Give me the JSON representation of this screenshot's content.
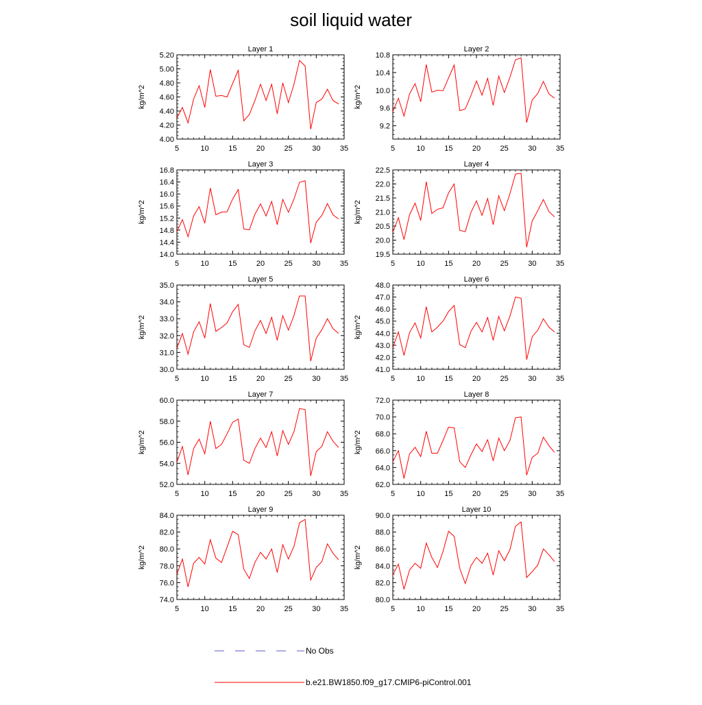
{
  "figure": {
    "title": "soil liquid water"
  },
  "legend": {
    "entries": [
      {
        "label": "No Obs",
        "color": "#5a5ac8",
        "dash": "dashed"
      },
      {
        "label": "b.e21.BW1850.f09_g17.CMIP6-piControl.001",
        "color": "#ff0000",
        "dash": "solid"
      }
    ]
  },
  "chart_data": [
    {
      "type": "line",
      "title": "Layer 1",
      "ylabel": "kg/m^2",
      "xlim": [
        5,
        35
      ],
      "xticks": [
        5,
        10,
        15,
        20,
        25,
        30,
        35
      ],
      "ylim": [
        4.0,
        5.2
      ],
      "yticks": [
        4.0,
        4.2,
        4.4,
        4.6,
        4.8,
        5.0,
        5.2
      ],
      "ydecimals": 2,
      "series": [
        {
          "name": "b.e21.BW1850.f09_g17.CMIP6-piControl.001",
          "color": "#ff0000",
          "x": [
            5,
            6,
            7,
            8,
            9,
            10,
            11,
            12,
            13,
            14,
            15,
            16,
            17,
            18,
            19,
            20,
            21,
            22,
            23,
            24,
            25,
            26,
            27,
            28,
            29,
            30,
            31,
            32,
            33,
            34
          ],
          "y": [
            4.3,
            4.45,
            4.23,
            4.57,
            4.76,
            4.45,
            4.99,
            4.61,
            4.62,
            4.6,
            4.79,
            4.98,
            4.26,
            4.35,
            4.55,
            4.78,
            4.55,
            4.78,
            4.36,
            4.8,
            4.52,
            4.78,
            5.12,
            5.04,
            4.14,
            4.52,
            4.57,
            4.71,
            4.55,
            4.5
          ]
        }
      ]
    },
    {
      "type": "line",
      "title": "Layer 2",
      "ylabel": "kg/m^2",
      "xlim": [
        5,
        35
      ],
      "xticks": [
        5,
        10,
        15,
        20,
        25,
        30,
        35
      ],
      "ylim": [
        8.9,
        10.8
      ],
      "yticks": [
        9.2,
        9.6,
        10.0,
        10.4,
        10.8
      ],
      "ydecimals": 1,
      "series": [
        {
          "name": "b.e21.BW1850.f09_g17.CMIP6-piControl.001",
          "color": "#ff0000",
          "x": [
            5,
            6,
            7,
            8,
            9,
            10,
            11,
            12,
            13,
            14,
            15,
            16,
            17,
            18,
            19,
            20,
            21,
            22,
            23,
            24,
            25,
            26,
            27,
            28,
            29,
            30,
            31,
            32,
            33,
            34
          ],
          "y": [
            9.52,
            9.82,
            9.42,
            9.92,
            10.15,
            9.74,
            10.58,
            9.96,
            10.0,
            9.99,
            10.28,
            10.57,
            9.54,
            9.58,
            9.88,
            10.21,
            9.89,
            10.27,
            9.66,
            10.32,
            9.95,
            10.29,
            10.69,
            10.73,
            9.27,
            9.78,
            9.93,
            10.2,
            9.92,
            9.82
          ]
        }
      ]
    },
    {
      "type": "line",
      "title": "Layer 3",
      "ylabel": "kg/m^2",
      "xlim": [
        5,
        35
      ],
      "xticks": [
        5,
        10,
        15,
        20,
        25,
        30,
        35
      ],
      "ylim": [
        14.0,
        16.8
      ],
      "yticks": [
        14.0,
        14.4,
        14.8,
        15.2,
        15.6,
        16.0,
        16.4,
        16.8
      ],
      "ydecimals": 1,
      "series": [
        {
          "name": "b.e21.BW1850.f09_g17.CMIP6-piControl.001",
          "color": "#ff0000",
          "x": [
            5,
            6,
            7,
            8,
            9,
            10,
            11,
            12,
            13,
            14,
            15,
            16,
            17,
            18,
            19,
            20,
            21,
            22,
            23,
            24,
            25,
            26,
            27,
            28,
            29,
            30,
            31,
            32,
            33,
            34
          ],
          "y": [
            14.75,
            15.15,
            14.58,
            15.27,
            15.58,
            15.03,
            16.2,
            15.31,
            15.4,
            15.41,
            15.83,
            16.15,
            14.84,
            14.81,
            15.33,
            15.67,
            15.27,
            15.75,
            14.98,
            15.82,
            15.39,
            15.83,
            16.39,
            16.44,
            14.37,
            15.06,
            15.29,
            15.68,
            15.31,
            15.17
          ]
        }
      ]
    },
    {
      "type": "line",
      "title": "Layer 4",
      "ylabel": "kg/m^2",
      "xlim": [
        5,
        35
      ],
      "xticks": [
        5,
        10,
        15,
        20,
        25,
        30,
        35
      ],
      "ylim": [
        19.5,
        22.5
      ],
      "yticks": [
        19.5,
        20.0,
        20.5,
        21.0,
        21.5,
        22.0,
        22.5
      ],
      "ydecimals": 1,
      "series": [
        {
          "name": "b.e21.BW1850.f09_g17.CMIP6-piControl.001",
          "color": "#ff0000",
          "x": [
            5,
            6,
            7,
            8,
            9,
            10,
            11,
            12,
            13,
            14,
            15,
            16,
            17,
            18,
            19,
            20,
            21,
            22,
            23,
            24,
            25,
            26,
            27,
            28,
            29,
            30,
            31,
            32,
            33,
            34
          ],
          "y": [
            20.28,
            20.8,
            20.02,
            20.9,
            21.32,
            20.7,
            22.08,
            20.95,
            21.1,
            21.15,
            21.68,
            22.0,
            20.35,
            20.3,
            20.98,
            21.4,
            20.88,
            21.48,
            20.55,
            21.58,
            21.05,
            21.65,
            22.35,
            22.38,
            19.75,
            20.68,
            21.05,
            21.45,
            21.02,
            20.83
          ]
        }
      ]
    },
    {
      "type": "line",
      "title": "Layer 5",
      "ylabel": "kg/m^2",
      "xlim": [
        5,
        35
      ],
      "xticks": [
        5,
        10,
        15,
        20,
        25,
        30,
        35
      ],
      "ylim": [
        30.0,
        35.0
      ],
      "yticks": [
        30.0,
        31.0,
        32.0,
        33.0,
        34.0,
        35.0
      ],
      "ydecimals": 1,
      "series": [
        {
          "name": "b.e21.BW1850.f09_g17.CMIP6-piControl.001",
          "color": "#ff0000",
          "x": [
            5,
            6,
            7,
            8,
            9,
            10,
            11,
            12,
            13,
            14,
            15,
            16,
            17,
            18,
            19,
            20,
            21,
            22,
            23,
            24,
            25,
            26,
            27,
            28,
            29,
            30,
            31,
            32,
            33,
            34
          ],
          "y": [
            31.25,
            32.12,
            30.9,
            32.22,
            32.82,
            31.85,
            33.9,
            32.25,
            32.48,
            32.75,
            33.42,
            33.85,
            31.45,
            31.3,
            32.28,
            32.9,
            32.12,
            33.08,
            31.72,
            33.18,
            32.32,
            33.2,
            34.35,
            34.35,
            30.48,
            31.85,
            32.35,
            33.0,
            32.42,
            32.12
          ]
        }
      ]
    },
    {
      "type": "line",
      "title": "Layer 6",
      "ylabel": "kg/m^2",
      "xlim": [
        5,
        35
      ],
      "xticks": [
        5,
        10,
        15,
        20,
        25,
        30,
        35
      ],
      "ylim": [
        41.0,
        48.0
      ],
      "yticks": [
        41.0,
        42.0,
        43.0,
        44.0,
        45.0,
        46.0,
        47.0,
        48.0
      ],
      "ydecimals": 1,
      "series": [
        {
          "name": "b.e21.BW1850.f09_g17.CMIP6-piControl.001",
          "color": "#ff0000",
          "x": [
            5,
            6,
            7,
            8,
            9,
            10,
            11,
            12,
            13,
            14,
            15,
            16,
            17,
            18,
            19,
            20,
            21,
            22,
            23,
            24,
            25,
            26,
            27,
            28,
            29,
            30,
            31,
            32,
            33,
            34
          ],
          "y": [
            42.8,
            44.1,
            42.15,
            44.05,
            44.85,
            43.6,
            46.2,
            44.1,
            44.5,
            45.0,
            45.8,
            46.3,
            43.05,
            42.8,
            44.15,
            44.9,
            44.1,
            45.3,
            43.4,
            45.4,
            44.2,
            45.4,
            47.0,
            46.9,
            41.8,
            43.7,
            44.25,
            45.2,
            44.5,
            44.1
          ]
        }
      ]
    },
    {
      "type": "line",
      "title": "Layer 7",
      "ylabel": "kg/m^2",
      "xlim": [
        5,
        35
      ],
      "xticks": [
        5,
        10,
        15,
        20,
        25,
        30,
        35
      ],
      "ylim": [
        52.0,
        60.0
      ],
      "yticks": [
        52.0,
        54.0,
        56.0,
        58.0,
        60.0
      ],
      "ydecimals": 1,
      "series": [
        {
          "name": "b.e21.BW1850.f09_g17.CMIP6-piControl.001",
          "color": "#ff0000",
          "x": [
            5,
            6,
            7,
            8,
            9,
            10,
            11,
            12,
            13,
            14,
            15,
            16,
            17,
            18,
            19,
            20,
            21,
            22,
            23,
            24,
            25,
            26,
            27,
            28,
            29,
            30,
            31,
            32,
            33,
            34
          ],
          "y": [
            54.1,
            55.6,
            52.9,
            55.4,
            56.3,
            54.9,
            58.0,
            55.4,
            55.8,
            56.8,
            57.9,
            58.2,
            54.3,
            54.0,
            55.4,
            56.4,
            55.5,
            57.0,
            54.7,
            57.1,
            55.8,
            57.0,
            59.2,
            59.1,
            52.8,
            55.1,
            55.6,
            57.0,
            56.1,
            55.5
          ]
        }
      ]
    },
    {
      "type": "line",
      "title": "Layer 8",
      "ylabel": "kg/m^2",
      "xlim": [
        5,
        35
      ],
      "xticks": [
        5,
        10,
        15,
        20,
        25,
        30,
        35
      ],
      "ylim": [
        62.0,
        72.0
      ],
      "yticks": [
        62.0,
        64.0,
        66.0,
        68.0,
        70.0,
        72.0
      ],
      "ydecimals": 1,
      "series": [
        {
          "name": "b.e21.BW1850.f09_g17.CMIP6-piControl.001",
          "color": "#ff0000",
          "x": [
            5,
            6,
            7,
            8,
            9,
            10,
            11,
            12,
            13,
            14,
            15,
            16,
            17,
            18,
            19,
            20,
            21,
            22,
            23,
            24,
            25,
            26,
            27,
            28,
            29,
            30,
            31,
            32,
            33,
            34
          ],
          "y": [
            64.7,
            66.0,
            62.7,
            65.6,
            66.4,
            65.3,
            68.3,
            65.7,
            65.7,
            67.2,
            68.8,
            68.7,
            64.7,
            64.0,
            65.5,
            66.8,
            65.9,
            67.3,
            64.8,
            67.5,
            66.0,
            67.2,
            69.9,
            70.0,
            63.1,
            65.2,
            65.7,
            67.6,
            66.6,
            65.8
          ]
        }
      ]
    },
    {
      "type": "line",
      "title": "Layer 9",
      "ylabel": "kg/m^2",
      "xlim": [
        5,
        35
      ],
      "xticks": [
        5,
        10,
        15,
        20,
        25,
        30,
        35
      ],
      "ylim": [
        74.0,
        84.0
      ],
      "yticks": [
        74.0,
        76.0,
        78.0,
        80.0,
        82.0,
        84.0
      ],
      "ydecimals": 1,
      "series": [
        {
          "name": "b.e21.BW1850.f09_g17.CMIP6-piControl.001",
          "color": "#ff0000",
          "x": [
            5,
            6,
            7,
            8,
            9,
            10,
            11,
            12,
            13,
            14,
            15,
            16,
            17,
            18,
            19,
            20,
            21,
            22,
            23,
            24,
            25,
            26,
            27,
            28,
            29,
            30,
            31,
            32,
            33,
            34
          ],
          "y": [
            77.0,
            78.8,
            75.5,
            78.3,
            79.0,
            78.2,
            81.1,
            78.9,
            78.4,
            80.2,
            82.1,
            81.7,
            77.6,
            76.5,
            78.4,
            79.6,
            78.8,
            80.0,
            77.2,
            80.5,
            78.8,
            80.3,
            83.1,
            83.5,
            76.3,
            77.8,
            78.5,
            80.6,
            79.5,
            78.7
          ]
        }
      ]
    },
    {
      "type": "line",
      "title": "Layer 10",
      "ylabel": "kg/m^2",
      "xlim": [
        5,
        35
      ],
      "xticks": [
        5,
        10,
        15,
        20,
        25,
        30,
        35
      ],
      "ylim": [
        80.0,
        90.0
      ],
      "yticks": [
        80.0,
        82.0,
        84.0,
        86.0,
        88.0,
        90.0
      ],
      "ydecimals": 1,
      "series": [
        {
          "name": "b.e21.BW1850.f09_g17.CMIP6-piControl.001",
          "color": "#ff0000",
          "x": [
            5,
            6,
            7,
            8,
            9,
            10,
            11,
            12,
            13,
            14,
            15,
            16,
            17,
            18,
            19,
            20,
            21,
            22,
            23,
            24,
            25,
            26,
            27,
            28,
            29,
            30,
            31,
            32,
            33,
            34
          ],
          "y": [
            82.9,
            84.2,
            81.2,
            83.5,
            84.3,
            83.7,
            86.7,
            85.0,
            83.8,
            85.7,
            88.1,
            87.5,
            83.7,
            81.9,
            84.0,
            85.0,
            84.3,
            85.5,
            82.9,
            85.8,
            84.6,
            85.9,
            88.7,
            89.2,
            82.6,
            83.3,
            84.1,
            86.0,
            85.3,
            84.5
          ]
        }
      ]
    }
  ]
}
